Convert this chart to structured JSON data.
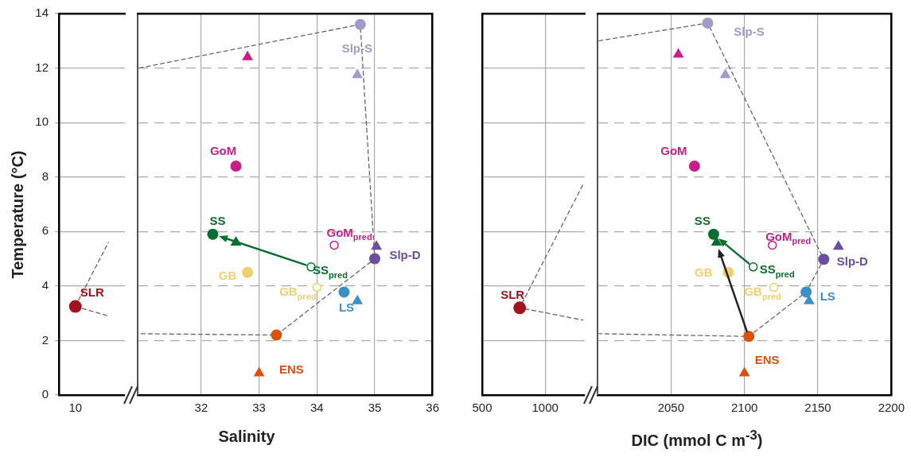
{
  "chart_data": [
    {
      "type": "scatter",
      "ylabel": "Temperature (°C)",
      "categories": [
        "10",
        null
      ],
      "ylim": [
        0,
        14
      ],
      "yticks": [
        0,
        2,
        4,
        6,
        8,
        10,
        12,
        14
      ],
      "grid": true,
      "series": [
        {
          "name": "SLR",
          "color": "#a3121e",
          "marker": "circle",
          "values": [
            3.25,
            null
          ]
        },
        {
          "type": "line",
          "color": "#666666",
          "line_style": "dashed",
          "marker": "none",
          "values": [
            3.25,
            5.6
          ]
        },
        {
          "type": "line",
          "color": "#666666",
          "line_style": "dashed",
          "marker": "none",
          "values": [
            3.25,
            2.9
          ]
        }
      ]
    },
    {
      "type": "scatter",
      "xlabel": "Salinity",
      "xlim": [
        30.9,
        36
      ],
      "xticks": [
        32,
        33,
        34,
        35,
        36
      ],
      "ylim": [
        0,
        14
      ],
      "yticks": [
        0,
        2,
        4,
        6,
        8,
        10,
        12,
        14
      ],
      "grid": true,
      "tick_labels": "x",
      "series": [
        {
          "name": "Slp-S",
          "color": "#a09cc9",
          "marker": "circle",
          "x": [
            34.75
          ],
          "values": [
            13.6
          ]
        },
        {
          "name": "GoM",
          "color": "#c71f85",
          "marker": "circle",
          "x": [
            32.6
          ],
          "values": [
            8.4
          ]
        },
        {
          "name": "SS",
          "color": "#0a6e2e",
          "marker": "circle",
          "x": [
            32.2
          ],
          "values": [
            5.9
          ]
        },
        {
          "name": "GB",
          "color": "#f0cf6e",
          "marker": "circle",
          "x": [
            32.8
          ],
          "values": [
            4.5
          ]
        },
        {
          "name": "Slp-D",
          "color": "#6a4ea0",
          "marker": "circle",
          "x": [
            35.0
          ],
          "values": [
            5.0
          ]
        },
        {
          "name": "LS",
          "color": "#3d8fc7",
          "marker": "circle",
          "x": [
            34.47
          ],
          "values": [
            3.78
          ]
        },
        {
          "name": "ENS",
          "color": "#d9530f",
          "marker": "circle",
          "x": [
            33.3
          ],
          "values": [
            2.2
          ]
        },
        {
          "name": "SS$_{pred}$",
          "color": "#0a6e2e",
          "colors": [
            "#ffffff"
          ],
          "marker": "circle",
          "x": [
            33.9
          ],
          "values": [
            4.7
          ]
        },
        {
          "name": "GoM$_{pred}$",
          "color": "#c71f85",
          "colors": [
            "#ffffff"
          ],
          "marker": "circle",
          "x": [
            34.3
          ],
          "values": [
            5.5
          ]
        },
        {
          "name": "GB$_{pred}$",
          "color": "#f0cf6e",
          "colors": [
            "#ffffff"
          ],
          "marker": "circle",
          "x": [
            34.0
          ],
          "values": [
            3.95
          ]
        },
        {
          "marker": "triangle",
          "colors": [
            "#c71f85",
            "#a09cc9",
            "#0a6e2e",
            "#6a4ea0",
            "#3d8fc7",
            "#d9530f"
          ],
          "x": [
            32.8,
            34.7,
            32.6,
            35.03,
            34.7,
            33.0
          ],
          "values": [
            12.4,
            11.75,
            5.6,
            5.45,
            3.45,
            0.8
          ]
        },
        {
          "type": "line",
          "color": "#666666",
          "line_style": "dashed",
          "marker": "none",
          "x": [
            30.93,
            34.75,
            35.0,
            33.3,
            30.93
          ],
          "values": [
            12.0,
            13.6,
            5.0,
            2.2,
            2.25
          ]
        }
      ]
    },
    {
      "type": "scatter",
      "xlim": [
        500,
        1315
      ],
      "xticks": [
        500,
        1000
      ],
      "ylim": [
        0,
        14
      ],
      "yticks": [
        0,
        2,
        4,
        6,
        8,
        10,
        12,
        14
      ],
      "grid": true,
      "tick_labels": "x",
      "series": [
        {
          "name": "SLR",
          "color": "#a3121e",
          "marker": "circle",
          "x": [
            798
          ],
          "values": [
            3.2
          ]
        },
        {
          "type": "line",
          "color": "#666666",
          "line_style": "dashed",
          "marker": "none",
          "x": [
            1298,
            798,
            1300
          ],
          "values": [
            7.7,
            3.2,
            2.75
          ]
        }
      ]
    },
    {
      "type": "scatter",
      "xlabel": "DIC (mmol C m$^{-3}$)",
      "xlim": [
        2000,
        2200
      ],
      "xticks": [
        2050,
        2100,
        2150,
        2200
      ],
      "ylim": [
        0,
        14
      ],
      "yticks": [
        0,
        2,
        4,
        6,
        8,
        10,
        12,
        14
      ],
      "grid": true,
      "tick_labels": "x",
      "series": [
        {
          "name": "Slp-S",
          "color": "#a09cc9",
          "marker": "circle",
          "x": [
            2075
          ],
          "values": [
            13.65
          ]
        },
        {
          "name": "GoM",
          "color": "#c71f85",
          "marker": "circle",
          "x": [
            2066
          ],
          "values": [
            8.4
          ]
        },
        {
          "name": "SS",
          "color": "#0a6e2e",
          "marker": "circle",
          "x": [
            2079
          ],
          "values": [
            5.9
          ]
        },
        {
          "name": "GB",
          "color": "#f0cf6e",
          "marker": "circle",
          "x": [
            2089
          ],
          "values": [
            4.5
          ]
        },
        {
          "name": "Slp-D",
          "color": "#6a4ea0",
          "marker": "circle",
          "x": [
            2154
          ],
          "values": [
            4.98
          ]
        },
        {
          "name": "LS",
          "color": "#3d8fc7",
          "marker": "circle",
          "x": [
            2142
          ],
          "values": [
            3.78
          ]
        },
        {
          "name": "ENS",
          "color": "#d9530f",
          "marker": "circle",
          "x": [
            2103
          ],
          "values": [
            2.15
          ]
        },
        {
          "name": "SS$_{pred}$",
          "color": "#0a6e2e",
          "colors": [
            "#ffffff"
          ],
          "marker": "circle",
          "x": [
            2106
          ],
          "values": [
            4.7
          ]
        },
        {
          "name": "GoM$_{pred}$",
          "color": "#c71f85",
          "colors": [
            "#ffffff"
          ],
          "marker": "circle",
          "x": [
            2119
          ],
          "values": [
            5.5
          ]
        },
        {
          "name": "GB$_{pred}$",
          "color": "#f0cf6e",
          "colors": [
            "#ffffff"
          ],
          "marker": "circle",
          "x": [
            2120
          ],
          "values": [
            3.95
          ]
        },
        {
          "marker": "triangle",
          "colors": [
            "#c71f85",
            "#a09cc9",
            "#0a6e2e",
            "#6a4ea0",
            "#3d8fc7",
            "#d9530f"
          ],
          "x": [
            2055,
            2087,
            2081,
            2164,
            2144,
            2100
          ],
          "values": [
            12.5,
            11.75,
            5.6,
            5.45,
            3.45,
            0.8
          ]
        },
        {
          "type": "line",
          "color": "#666666",
          "line_style": "dashed",
          "marker": "none",
          "x": [
            2001,
            2075,
            2154,
            2142,
            2103,
            2001
          ],
          "values": [
            13.0,
            13.65,
            4.98,
            3.78,
            2.15,
            2.25
          ]
        }
      ]
    }
  ]
}
